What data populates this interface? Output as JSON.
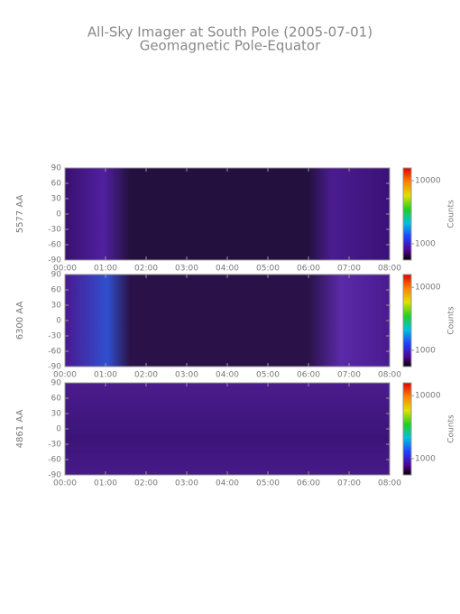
{
  "title": "All-Sky Imager at South Pole (2005-07-01)",
  "subtitle": "Geomagnetic Pole-Equator",
  "chart_data": [
    {
      "type": "heatmap",
      "ylabel": "5577 AA",
      "ylim": [
        -90,
        90
      ],
      "yticks": [
        90,
        60,
        30,
        0,
        -30,
        -60,
        -90
      ],
      "xticks": [
        "00:00",
        "01:00",
        "02:00",
        "03:00",
        "04:00",
        "05:00",
        "06:00",
        "07:00",
        "08:00"
      ],
      "colorbar": {
        "label": "Counts",
        "log": true,
        "lim": [
          550,
          16000
        ],
        "ticks": [
          1000,
          10000
        ]
      }
    },
    {
      "type": "heatmap",
      "ylabel": "6300 AA",
      "ylim": [
        -90,
        90
      ],
      "yticks": [
        90,
        60,
        30,
        0,
        -30,
        -60,
        -90
      ],
      "xticks": [
        "00:00",
        "01:00",
        "02:00",
        "03:00",
        "04:00",
        "05:00",
        "06:00",
        "07:00",
        "08:00"
      ],
      "colorbar": {
        "label": "Counts",
        "log": true,
        "lim": [
          550,
          16000
        ],
        "ticks": [
          1000,
          10000
        ]
      }
    },
    {
      "type": "heatmap",
      "ylabel": "4861 AA",
      "ylim": [
        -90,
        90
      ],
      "yticks": [
        90,
        60,
        30,
        0,
        -30,
        -60,
        -90
      ],
      "xticks": [
        "00:00",
        "01:00",
        "02:00",
        "03:00",
        "04:00",
        "05:00",
        "06:00",
        "07:00",
        "08:00"
      ],
      "colorbar": {
        "label": "Counts",
        "log": true,
        "lim": [
          550,
          16000
        ],
        "ticks": [
          1000,
          10000
        ]
      }
    }
  ]
}
